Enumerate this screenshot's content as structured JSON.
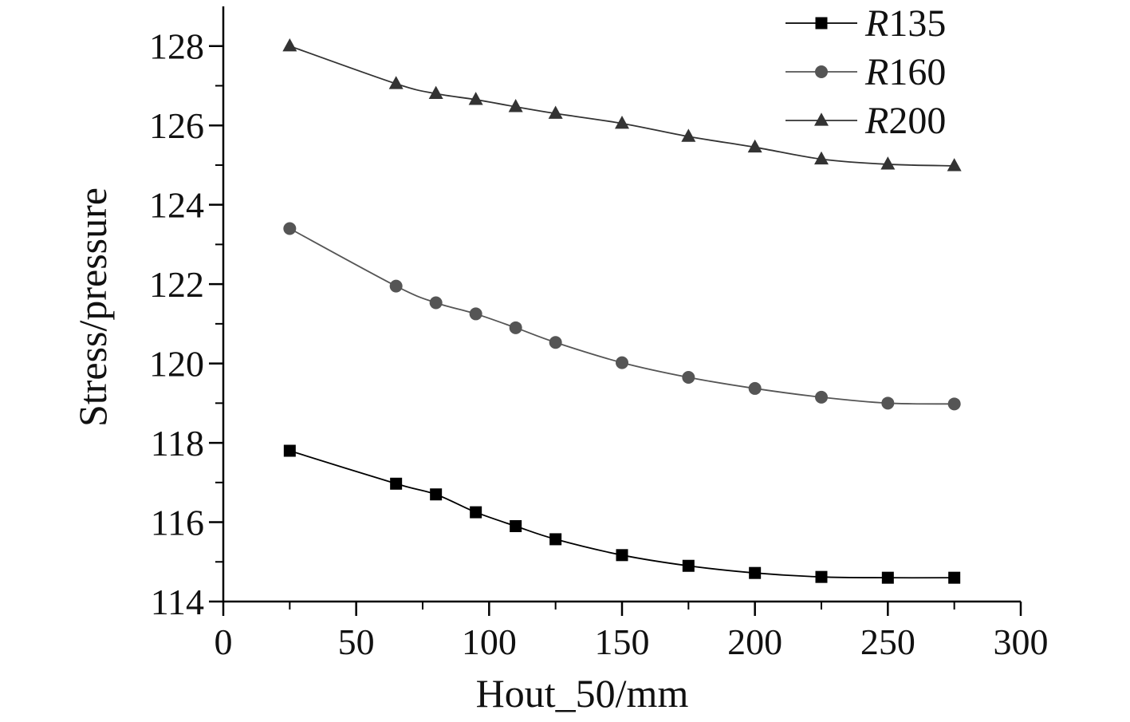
{
  "chart_data": {
    "type": "line",
    "title": "",
    "xlabel": "Hout_50/mm",
    "ylabel": "Stress/pressure",
    "xlim": [
      0,
      300
    ],
    "ylim": [
      114,
      129
    ],
    "xticks": [
      0,
      50,
      100,
      150,
      200,
      250,
      300
    ],
    "yticks": [
      114,
      116,
      118,
      120,
      122,
      124,
      126,
      128
    ],
    "grid": false,
    "legend_position": "top-right",
    "x": [
      25,
      65,
      80,
      95,
      110,
      125,
      150,
      175,
      200,
      225,
      250,
      275
    ],
    "series": [
      {
        "name": "R135",
        "name_prefix": "R",
        "name_suffix": "135",
        "marker": "square",
        "color": "#000000",
        "values": [
          117.8,
          116.97,
          116.7,
          116.25,
          115.9,
          115.57,
          115.17,
          114.9,
          114.72,
          114.62,
          114.6,
          114.6
        ]
      },
      {
        "name": "R160",
        "name_prefix": "R",
        "name_suffix": "160",
        "marker": "circle",
        "color": "#555555",
        "values": [
          123.4,
          121.95,
          121.53,
          121.25,
          120.9,
          120.53,
          120.02,
          119.65,
          119.37,
          119.15,
          119.0,
          118.98
        ]
      },
      {
        "name": "R200",
        "name_prefix": "R",
        "name_suffix": "200",
        "marker": "triangle",
        "color": "#333333",
        "values": [
          128.0,
          127.05,
          126.8,
          126.65,
          126.47,
          126.3,
          126.05,
          125.72,
          125.45,
          125.15,
          125.02,
          124.98
        ]
      }
    ]
  }
}
